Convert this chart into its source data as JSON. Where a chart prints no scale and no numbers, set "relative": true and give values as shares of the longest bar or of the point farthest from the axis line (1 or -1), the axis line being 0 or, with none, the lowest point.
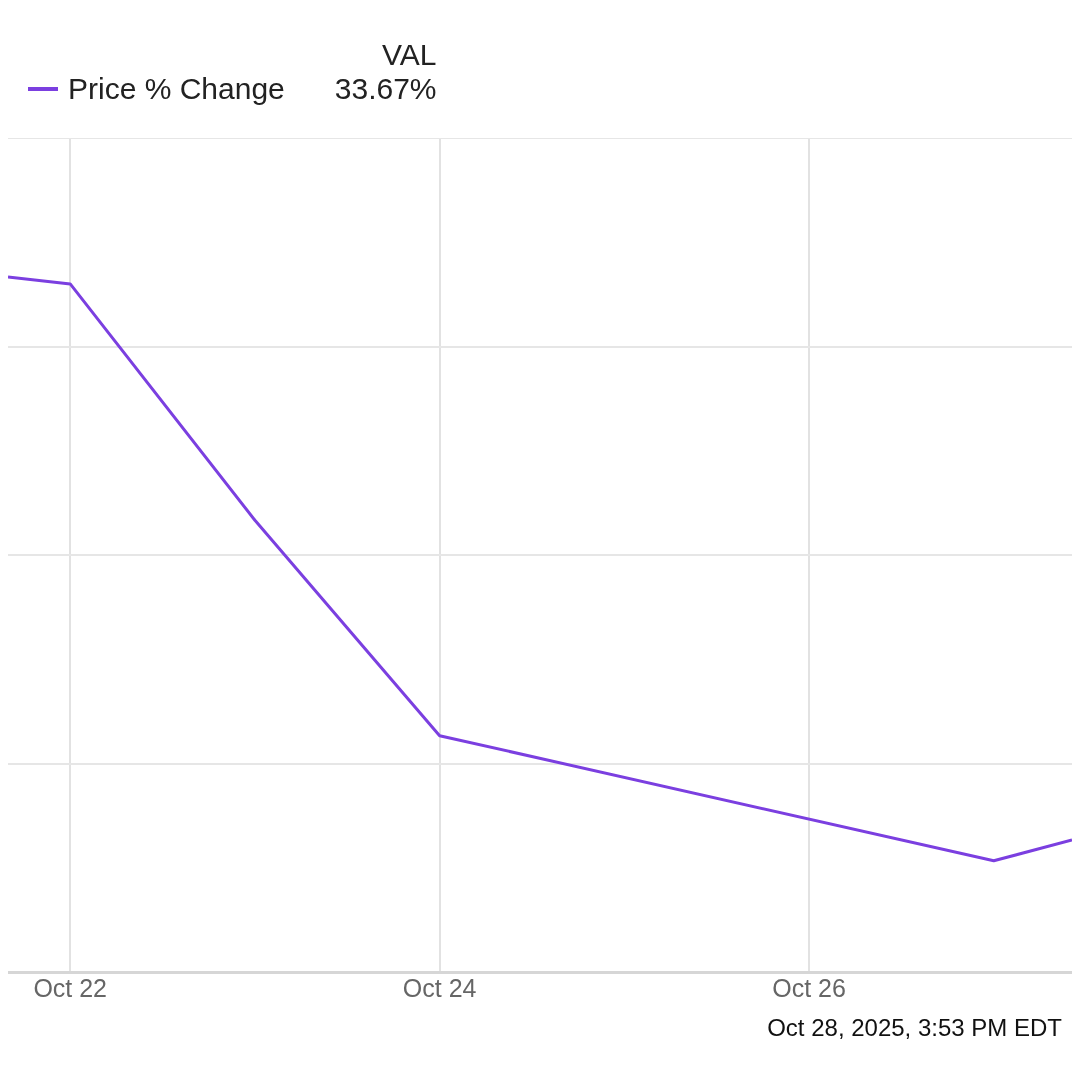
{
  "chart_data": {
    "type": "line",
    "relative": true,
    "x": [
      "2025-10-21T15:55",
      "2025-10-22",
      "2025-10-23",
      "2025-10-24",
      "2025-10-27",
      "2025-10-27T10:10"
    ],
    "xlim": [
      "2025-10-21T15:55",
      "2025-10-27T10:10"
    ],
    "xticks": [
      {
        "value": "2025-10-22",
        "label": "Oct 22"
      },
      {
        "value": "2025-10-24",
        "label": "Oct 24"
      },
      {
        "value": "2025-10-26",
        "label": "Oct 26"
      }
    ],
    "series": [
      {
        "name": "Price % Change",
        "color": "#7b3fe0",
        "values": [
          1.0,
          0.99,
          0.65,
          0.34,
          0.16,
          0.19
        ]
      }
    ],
    "grid": true,
    "legend": "top left",
    "marker": "none",
    "line_style": "solid",
    "annotations": [
      "VAL",
      "33.67%",
      "Oct 28, 2025, 3:53 PM EDT"
    ]
  }
}
